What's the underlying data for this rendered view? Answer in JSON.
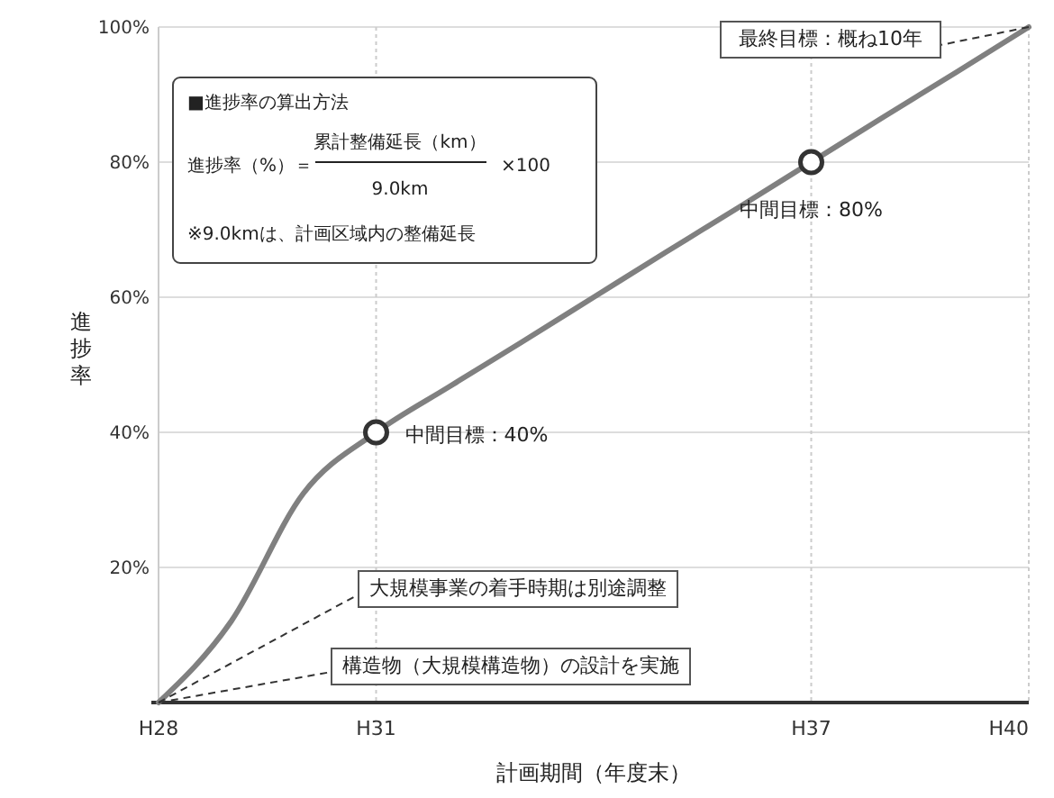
{
  "chart_data": {
    "type": "line",
    "xlabel": "計画期間（年度末）",
    "ylabel": "進捗率",
    "categories": [
      "H28",
      null,
      null,
      "H31",
      null,
      null,
      null,
      null,
      null,
      "H37",
      null,
      null,
      "H40"
    ],
    "series": [
      {
        "color": "#808080",
        "values": [
          0,
          12,
          31,
          40,
          46.7,
          53.3,
          60,
          66.7,
          73.3,
          80,
          86.7,
          93.3,
          100
        ]
      },
      {
        "type": "scatter",
        "marker": "circle",
        "color": "#333333",
        "x": [
          "H31",
          "H37"
        ],
        "values": [
          40,
          80
        ]
      }
    ],
    "ylim": [
      0,
      100
    ],
    "yticks": [
      {
        "value": 0,
        "label": null
      },
      {
        "value": 20,
        "label": "20%"
      },
      {
        "value": 40,
        "label": "40%"
      },
      {
        "value": 60,
        "label": "60%"
      },
      {
        "value": 80,
        "label": "80%"
      },
      {
        "value": 100,
        "label": "100%"
      }
    ],
    "grid": true,
    "marker": "none",
    "line_style": "solid",
    "annotations": [
      {
        "text": "中間目標：40%",
        "x": "H31",
        "y": 40
      },
      {
        "text": "中間目標：80%",
        "x": "H37",
        "y": 80
      },
      {
        "text": "最終目標：概ね10年",
        "x": "H40",
        "y": 100
      },
      {
        "text": "大規模事業の着手時期は別途調整",
        "x": "H28",
        "y": 0
      },
      {
        "text": "構造物（大規模構造物）の設計を実施",
        "x": "H28",
        "y": 0
      },
      "■進捗率の算出方法",
      "進捗率（%）＝",
      "累計整備延長（km）",
      "9.0km",
      "×100",
      "※9.0kmは、計画区域内の整備延長"
    ]
  }
}
